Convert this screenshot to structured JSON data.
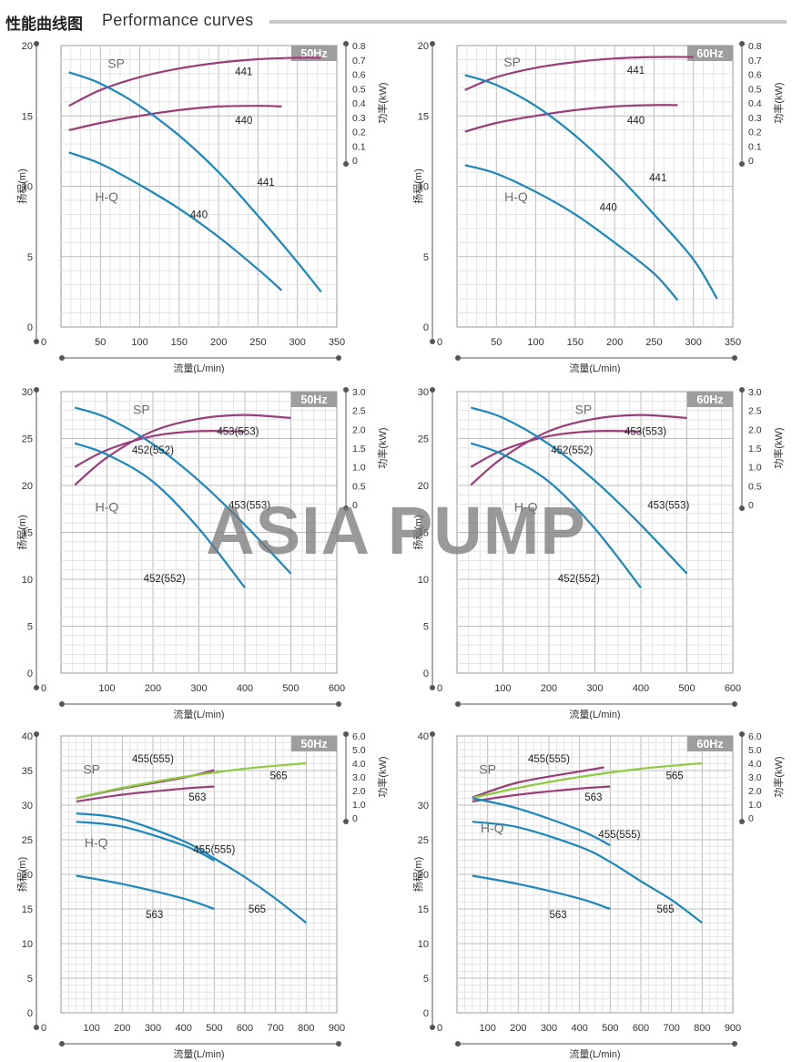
{
  "header": {
    "title_cn": "性能曲线图",
    "title_en": "Performance curves"
  },
  "watermark": "ASIA PUMP",
  "colors": {
    "hq": "#1b87bf",
    "sp": "#9b3d7a",
    "sp_565": "#8ccc3e",
    "freq_tag_bg": "#9e9e9e",
    "grid": "#c4c4c4"
  },
  "chart_data": [
    {
      "type": "line",
      "freq": "50Hz",
      "xlabel": "流量(L/min)",
      "ylabel": "扬程(m)",
      "y2label": "功率(kW)",
      "xlim": [
        0,
        350
      ],
      "xticks": [
        0,
        50,
        100,
        150,
        200,
        250,
        300,
        350
      ],
      "ylim": [
        0,
        20
      ],
      "yticks": [
        0,
        5,
        10,
        15,
        20
      ],
      "y2lim": [
        0,
        0.8
      ],
      "y2ticks": [
        "0",
        "0.1",
        "0.2",
        "0.3",
        "0.4",
        "0.5",
        "0.6",
        "0.7",
        "0.8"
      ],
      "hq_label": "H-Q",
      "sp_label": "SP",
      "head_series": [
        {
          "name": "441",
          "x": [
            10,
            50,
            100,
            150,
            200,
            250,
            300,
            330
          ],
          "y": [
            18.1,
            17.3,
            15.7,
            13.6,
            11.0,
            7.9,
            4.6,
            2.5
          ]
        },
        {
          "name": "440",
          "x": [
            10,
            50,
            100,
            150,
            200,
            250,
            280
          ],
          "y": [
            12.4,
            11.6,
            10.1,
            8.4,
            6.4,
            4.1,
            2.6
          ]
        }
      ],
      "power_series": [
        {
          "name": "441",
          "x": [
            10,
            50,
            100,
            150,
            200,
            250,
            300,
            330
          ],
          "y": [
            0.38,
            0.49,
            0.58,
            0.64,
            0.68,
            0.705,
            0.715,
            0.715
          ]
        },
        {
          "name": "440",
          "x": [
            10,
            50,
            100,
            150,
            200,
            250,
            280
          ],
          "y": [
            0.21,
            0.26,
            0.31,
            0.35,
            0.375,
            0.38,
            0.375
          ]
        }
      ],
      "annotations": [
        {
          "text": "SP",
          "x": 70,
          "y2": 0.67
        },
        {
          "text": "441",
          "x": 232,
          "y2": 0.62
        },
        {
          "text": "440",
          "x": 232,
          "y2": 0.28
        },
        {
          "text": "441",
          "x": 260,
          "y": 10.3
        },
        {
          "text": "H-Q",
          "x": 58,
          "y": 9.2
        },
        {
          "text": "440",
          "x": 175,
          "y": 8.0
        }
      ]
    },
    {
      "type": "line",
      "freq": "60Hz",
      "xlabel": "流量(L/min)",
      "ylabel": "扬程(m)",
      "y2label": "功率(kW)",
      "xlim": [
        0,
        350
      ],
      "xticks": [
        0,
        50,
        100,
        150,
        200,
        250,
        300,
        350
      ],
      "ylim": [
        0,
        20
      ],
      "yticks": [
        0,
        5,
        10,
        15,
        20
      ],
      "y2lim": [
        0,
        0.8
      ],
      "y2ticks": [
        "0",
        "0.1",
        "0.2",
        "0.3",
        "0.4",
        "0.5",
        "0.6",
        "0.7",
        "0.8"
      ],
      "hq_label": "H-Q",
      "sp_label": "SP",
      "head_series": [
        {
          "name": "441",
          "x": [
            10,
            50,
            100,
            150,
            200,
            250,
            300,
            330
          ],
          "y": [
            17.9,
            17.2,
            15.7,
            13.6,
            11.0,
            8.0,
            4.8,
            2.0
          ]
        },
        {
          "name": "440",
          "x": [
            10,
            50,
            100,
            150,
            200,
            250,
            280
          ],
          "y": [
            11.5,
            10.9,
            9.6,
            8.0,
            6.0,
            3.8,
            1.9
          ]
        }
      ],
      "power_series": [
        {
          "name": "441",
          "x": [
            10,
            50,
            100,
            150,
            200,
            250,
            300
          ],
          "y": [
            0.49,
            0.58,
            0.645,
            0.685,
            0.71,
            0.72,
            0.72
          ]
        },
        {
          "name": "440",
          "x": [
            10,
            50,
            100,
            150,
            200,
            250,
            280
          ],
          "y": [
            0.2,
            0.26,
            0.31,
            0.35,
            0.375,
            0.385,
            0.385
          ]
        }
      ],
      "annotations": [
        {
          "text": "SP",
          "x": 70,
          "y2": 0.68
        },
        {
          "text": "441",
          "x": 227,
          "y2": 0.63
        },
        {
          "text": "440",
          "x": 227,
          "y2": 0.28
        },
        {
          "text": "441",
          "x": 255,
          "y": 10.6
        },
        {
          "text": "H-Q",
          "x": 75,
          "y": 9.2
        },
        {
          "text": "440",
          "x": 192,
          "y": 8.5
        }
      ]
    },
    {
      "type": "line",
      "freq": "50Hz",
      "xlabel": "流量(L/min)",
      "ylabel": "扬程(m)",
      "y2label": "功率(kW)",
      "xlim": [
        0,
        600
      ],
      "xticks": [
        0,
        100,
        200,
        300,
        400,
        500,
        600
      ],
      "ylim": [
        0,
        30
      ],
      "yticks": [
        0,
        5,
        10,
        15,
        20,
        25,
        30
      ],
      "y2lim": [
        0,
        3.0
      ],
      "y2ticks": [
        "0",
        "0.5",
        "1.0",
        "1.5",
        "2.0",
        "2.5",
        "3.0"
      ],
      "hq_label": "H-Q",
      "sp_label": "SP",
      "head_series": [
        {
          "name": "453(553)",
          "x": [
            30,
            100,
            200,
            300,
            400,
            500
          ],
          "y": [
            28.3,
            27.2,
            24.4,
            20.5,
            15.8,
            10.6
          ]
        },
        {
          "name": "452(552)",
          "x": [
            30,
            100,
            200,
            300,
            400
          ],
          "y": [
            24.5,
            23.3,
            20.4,
            15.4,
            9.1
          ]
        }
      ],
      "power_series": [
        {
          "name": "453(553)",
          "x": [
            30,
            100,
            200,
            300,
            400,
            500
          ],
          "y": [
            0.52,
            1.25,
            1.95,
            2.28,
            2.38,
            2.3
          ]
        },
        {
          "name": "452(552)",
          "x": [
            30,
            100,
            200,
            300,
            400
          ],
          "y": [
            1.0,
            1.45,
            1.82,
            1.95,
            1.94
          ]
        }
      ],
      "annotations": [
        {
          "text": "SP",
          "x": 175,
          "y2": 2.5
        },
        {
          "text": "453(553)",
          "x": 385,
          "y2": 1.95
        },
        {
          "text": "452(552)",
          "x": 200,
          "y2": 1.45
        },
        {
          "text": "H-Q",
          "x": 100,
          "y": 17.6
        },
        {
          "text": "453(553)",
          "x": 410,
          "y": 17.9
        },
        {
          "text": "452(552)",
          "x": 225,
          "y": 10.1
        }
      ]
    },
    {
      "type": "line",
      "freq": "60Hz",
      "xlabel": "流量(L/min)",
      "ylabel": "扬程(m)",
      "y2label": "功率(kW)",
      "xlim": [
        0,
        600
      ],
      "xticks": [
        0,
        100,
        200,
        300,
        400,
        500,
        600
      ],
      "ylim": [
        0,
        30
      ],
      "yticks": [
        0,
        5,
        10,
        15,
        20,
        25,
        30
      ],
      "y2lim": [
        0,
        3.0
      ],
      "y2ticks": [
        "0",
        "0.5",
        "1.0",
        "1.5",
        "2.0",
        "2.5",
        "3.0"
      ],
      "hq_label": "H-Q",
      "sp_label": "SP",
      "head_series": [
        {
          "name": "453(553)",
          "x": [
            30,
            100,
            200,
            300,
            400,
            500
          ],
          "y": [
            28.3,
            27.2,
            24.4,
            20.5,
            15.8,
            10.6
          ]
        },
        {
          "name": "452(552)",
          "x": [
            30,
            100,
            200,
            300,
            400
          ],
          "y": [
            24.5,
            23.3,
            20.4,
            15.4,
            9.1
          ]
        }
      ],
      "power_series": [
        {
          "name": "453(553)",
          "x": [
            30,
            100,
            200,
            300,
            400,
            500
          ],
          "y": [
            0.52,
            1.25,
            1.95,
            2.28,
            2.38,
            2.3
          ]
        },
        {
          "name": "452(552)",
          "x": [
            30,
            100,
            200,
            300,
            400
          ],
          "y": [
            1.0,
            1.45,
            1.82,
            1.95,
            1.94
          ]
        }
      ],
      "annotations": [
        {
          "text": "SP",
          "x": 275,
          "y2": 2.5
        },
        {
          "text": "453(553)",
          "x": 410,
          "y2": 1.95
        },
        {
          "text": "452(552)",
          "x": 250,
          "y2": 1.45
        },
        {
          "text": "H-Q",
          "x": 150,
          "y": 17.6
        },
        {
          "text": "453(553)",
          "x": 460,
          "y": 17.9
        },
        {
          "text": "452(552)",
          "x": 265,
          "y": 10.1
        }
      ]
    },
    {
      "type": "line",
      "freq": "50Hz",
      "xlabel": "流量(L/min)",
      "ylabel": "扬程(m)",
      "y2label": "功率(kW)",
      "xlim": [
        0,
        900
      ],
      "xticks": [
        0,
        100,
        200,
        300,
        400,
        500,
        600,
        700,
        800,
        900
      ],
      "ylim": [
        0,
        40
      ],
      "yticks": [
        0,
        5,
        10,
        15,
        20,
        25,
        30,
        35,
        40
      ],
      "y2lim": [
        0,
        6.0
      ],
      "y2ticks": [
        "0",
        "1.0",
        "2.0",
        "3.0",
        "4.0",
        "5.0",
        "6.0"
      ],
      "hq_label": "H-Q",
      "sp_label": "SP",
      "head_series": [
        {
          "name": "565",
          "x": [
            50,
            200,
            400,
            500,
            600,
            700,
            800
          ],
          "y": [
            28.8,
            28.0,
            24.8,
            22.3,
            19.6,
            16.5,
            13.0
          ]
        },
        {
          "name": "455(555)",
          "x": [
            50,
            200,
            400,
            500
          ],
          "y": [
            27.6,
            26.9,
            24.2,
            22.0
          ]
        },
        {
          "name": "563",
          "x": [
            50,
            200,
            400,
            500
          ],
          "y": [
            19.8,
            18.6,
            16.5,
            15.0
          ]
        }
      ],
      "power_series": [
        {
          "name": "455(555)",
          "x": [
            50,
            200,
            400,
            500
          ],
          "y": [
            1.45,
            2.15,
            2.95,
            3.5
          ]
        },
        {
          "name": "565",
          "x": [
            50,
            200,
            400,
            600,
            800
          ],
          "y": [
            1.45,
            2.2,
            3.0,
            3.6,
            4.0
          ]
        },
        {
          "name": "563",
          "x": [
            50,
            200,
            400,
            500
          ],
          "y": [
            1.2,
            1.7,
            2.15,
            2.3
          ]
        }
      ],
      "annotations": [
        {
          "text": "SP",
          "x": 100,
          "y2": 3.5
        },
        {
          "text": "455(555)",
          "x": 300,
          "y2": 4.35
        },
        {
          "text": "565",
          "x": 710,
          "y2": 3.1
        },
        {
          "text": "563",
          "x": 445,
          "y2": 1.55
        },
        {
          "text": "455(555)",
          "x": 500,
          "y": 23.6
        },
        {
          "text": "H-Q",
          "x": 115,
          "y": 24.5
        },
        {
          "text": "563",
          "x": 305,
          "y": 14.2
        },
        {
          "text": "565",
          "x": 640,
          "y": 15.0
        }
      ]
    },
    {
      "type": "line",
      "freq": "60Hz",
      "xlabel": "流量(L/min)",
      "ylabel": "扬程(m)",
      "y2label": "功率(kW)",
      "xlim": [
        0,
        900
      ],
      "xticks": [
        0,
        100,
        200,
        300,
        400,
        500,
        600,
        700,
        800,
        900
      ],
      "ylim": [
        0,
        40
      ],
      "yticks": [
        0,
        5,
        10,
        15,
        20,
        25,
        30,
        40
      ],
      "y2lim": [
        0,
        6.0
      ],
      "y2ticks": [
        "0",
        "1.0",
        "2.0",
        "3.0",
        "4.0",
        "5.0",
        "6.0"
      ],
      "hq_label": "H-Q",
      "sp_label": "SP",
      "head_series": [
        {
          "name": "565",
          "x": [
            50,
            200,
            400,
            500,
            600,
            700,
            800
          ],
          "y": [
            27.6,
            26.8,
            24.0,
            21.8,
            19.0,
            16.3,
            13.0
          ]
        },
        {
          "name": "455(555)",
          "x": [
            50,
            200,
            400,
            500
          ],
          "y": [
            31.0,
            29.5,
            26.4,
            24.2
          ]
        },
        {
          "name": "563",
          "x": [
            50,
            200,
            400,
            500
          ],
          "y": [
            19.8,
            18.6,
            16.5,
            15.0
          ]
        }
      ],
      "power_series": [
        {
          "name": "455(555)",
          "x": [
            50,
            200,
            400,
            480
          ],
          "y": [
            1.5,
            2.6,
            3.4,
            3.7
          ]
        },
        {
          "name": "565",
          "x": [
            50,
            200,
            400,
            600,
            800
          ],
          "y": [
            1.45,
            2.2,
            3.0,
            3.6,
            4.0
          ]
        },
        {
          "name": "563",
          "x": [
            50,
            200,
            400,
            500
          ],
          "y": [
            1.2,
            1.7,
            2.15,
            2.3
          ]
        }
      ],
      "annotations": [
        {
          "text": "SP",
          "x": 100,
          "y2": 3.5
        },
        {
          "text": "455(555)",
          "x": 300,
          "y2": 4.35
        },
        {
          "text": "565",
          "x": 710,
          "y2": 3.1
        },
        {
          "text": "563",
          "x": 445,
          "y2": 1.55
        },
        {
          "text": "455(555)",
          "x": 530,
          "y": 25.8
        },
        {
          "text": "H-Q",
          "x": 115,
          "y": 26.6
        },
        {
          "text": "563",
          "x": 330,
          "y": 14.2
        },
        {
          "text": "565",
          "x": 680,
          "y": 15.0
        }
      ]
    }
  ]
}
